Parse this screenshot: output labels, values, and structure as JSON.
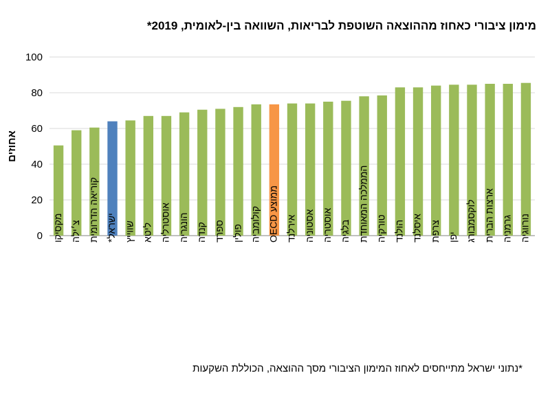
{
  "chart_data": {
    "type": "bar",
    "title": "מימון ציבורי כאחוז מההוצאה השוטפת לבריאות, השוואה בין-לאומית, 2019*",
    "ylabel": "אחוזים",
    "xlabel": "",
    "ylim": [
      0,
      100
    ],
    "yticks": [
      0,
      20,
      40,
      60,
      80,
      100
    ],
    "grid": true,
    "categories": [
      "מקסיקו",
      "צ׳ילה",
      "קוריאה הדרומית",
      "ישראל*",
      "שווייץ",
      "ליטא",
      "אוסטרליה",
      "הונגריה",
      "קנדה",
      "ספרד",
      "פולין",
      "קולומביה",
      "ממוצע OECD",
      "אירלנד",
      "אסטוניה",
      "אוסטריה",
      "בלגיה",
      "הממלכה המאוחדת",
      "טורקיה",
      "הולנד",
      "איסלנד",
      "צרפת",
      "יפן",
      "לוקסמבורג",
      "ארצות הברית",
      "גרמניה",
      "נורווגיה"
    ],
    "values": [
      50.5,
      59,
      60.5,
      64,
      64.5,
      67,
      67,
      69,
      70.5,
      71,
      72,
      73.5,
      73.5,
      74,
      74,
      75,
      75.5,
      78,
      78.5,
      83,
      83,
      84,
      84.5,
      84.5,
      85,
      85,
      85.5
    ],
    "bar_colors": {
      "default": "#9bbb59",
      "highlight_israel": "#4f81bd",
      "highlight_oecd": "#f79646"
    },
    "highlight_index": {
      "ישראל*": "highlight_israel",
      "ממוצע OECD": "highlight_oecd"
    }
  },
  "footnote": "*נתוני ישראל מתייחסים לאחוז המימון הציבורי מסך ההוצאה, הכוללת השקעות"
}
